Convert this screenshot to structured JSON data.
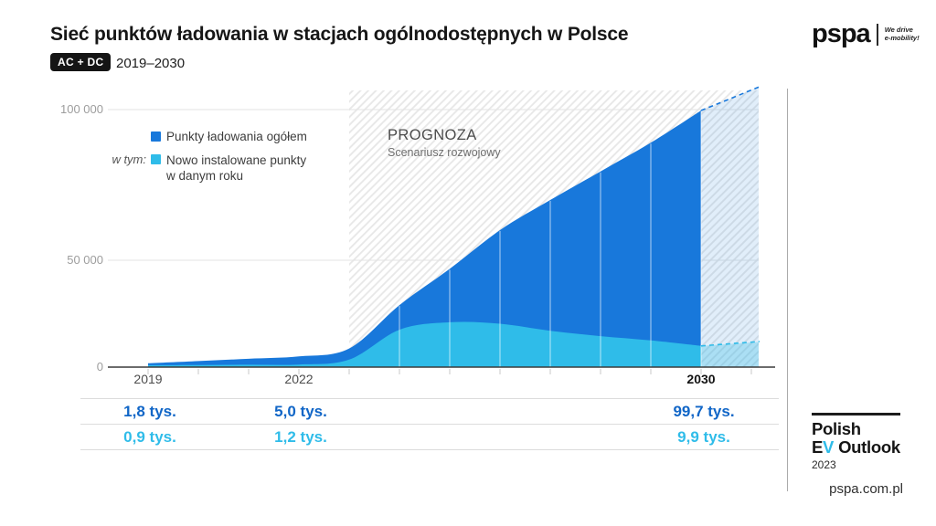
{
  "header": {
    "title": "Sieć punktów ładowania w stacjach ogólnodostępnych w Polsce",
    "badge": "AC + DC",
    "period": "2019–2030"
  },
  "brand": {
    "logo_text": "pspa",
    "tagline_line1": "We drive",
    "tagline_line2": "e-mobility!"
  },
  "legend": {
    "series1_label": "Punkty ładowania ogółem",
    "series2_prefix": "w tym:",
    "series2_line1": "Nowo instalowane punkty",
    "series2_line2": "w danym roku"
  },
  "annotation": {
    "title": "PROGNOZA",
    "subtitle": "Scenariusz rozwojowy"
  },
  "colors": {
    "total_blue": "#1878DB",
    "new_cyan": "#2FBCE9",
    "summary_total_text": "#1166C7",
    "summary_new_text": "#2FBCE9"
  },
  "chart_data": {
    "type": "area",
    "title": "Sieć punktów ładowania w stacjach ogólnodostępnych w Polsce (AC + DC, 2019–2030)",
    "xlabel": "",
    "ylabel": "",
    "x": [
      2019,
      2020,
      2021,
      2022,
      2023,
      2024,
      2025,
      2026,
      2027,
      2028,
      2029,
      2030
    ],
    "series": [
      {
        "name": "Punkty ładowania ogółem",
        "color": "#1878DB",
        "values": [
          1800,
          2800,
          3900,
          5000,
          8700,
          29000,
          46000,
          60000,
          70000,
          79500,
          89000,
          99700
        ]
      },
      {
        "name": "Nowo instalowane punkty w danym roku",
        "color": "#2FBCE9",
        "values": [
          900,
          1000,
          1100,
          1200,
          3500,
          17500,
          21000,
          20300,
          17000,
          14500,
          12500,
          9900
        ]
      }
    ],
    "forecast_from": 2023,
    "forecast_style": "hatched-background, dashed extrapolation beyond 2030",
    "ylim": [
      0,
      100000
    ],
    "grid": "horizontal",
    "legend_position": "top-left",
    "yticks": [
      {
        "label": "100 000",
        "value": 100000
      },
      {
        "label": "50 000",
        "value": 50000
      },
      {
        "label": "0",
        "value": 0
      }
    ],
    "xtick_labels": [
      "2019",
      "2022",
      "2030"
    ]
  },
  "summary": {
    "rows": [
      {
        "name": "total",
        "color": "#1166C7",
        "values": [
          "1,8 tys.",
          "5,0 tys.",
          "99,7 tys."
        ]
      },
      {
        "name": "new",
        "color": "#2FBCE9",
        "values": [
          "0,9 tys.",
          "1,2 tys.",
          "9,9 tys."
        ]
      }
    ]
  },
  "footer": {
    "report_line1": "Polish",
    "report_line2_e": "E",
    "report_line2_v": "V",
    "report_line2_rest": "Outlook",
    "report_year": "2023",
    "url": "pspa.com.pl"
  }
}
